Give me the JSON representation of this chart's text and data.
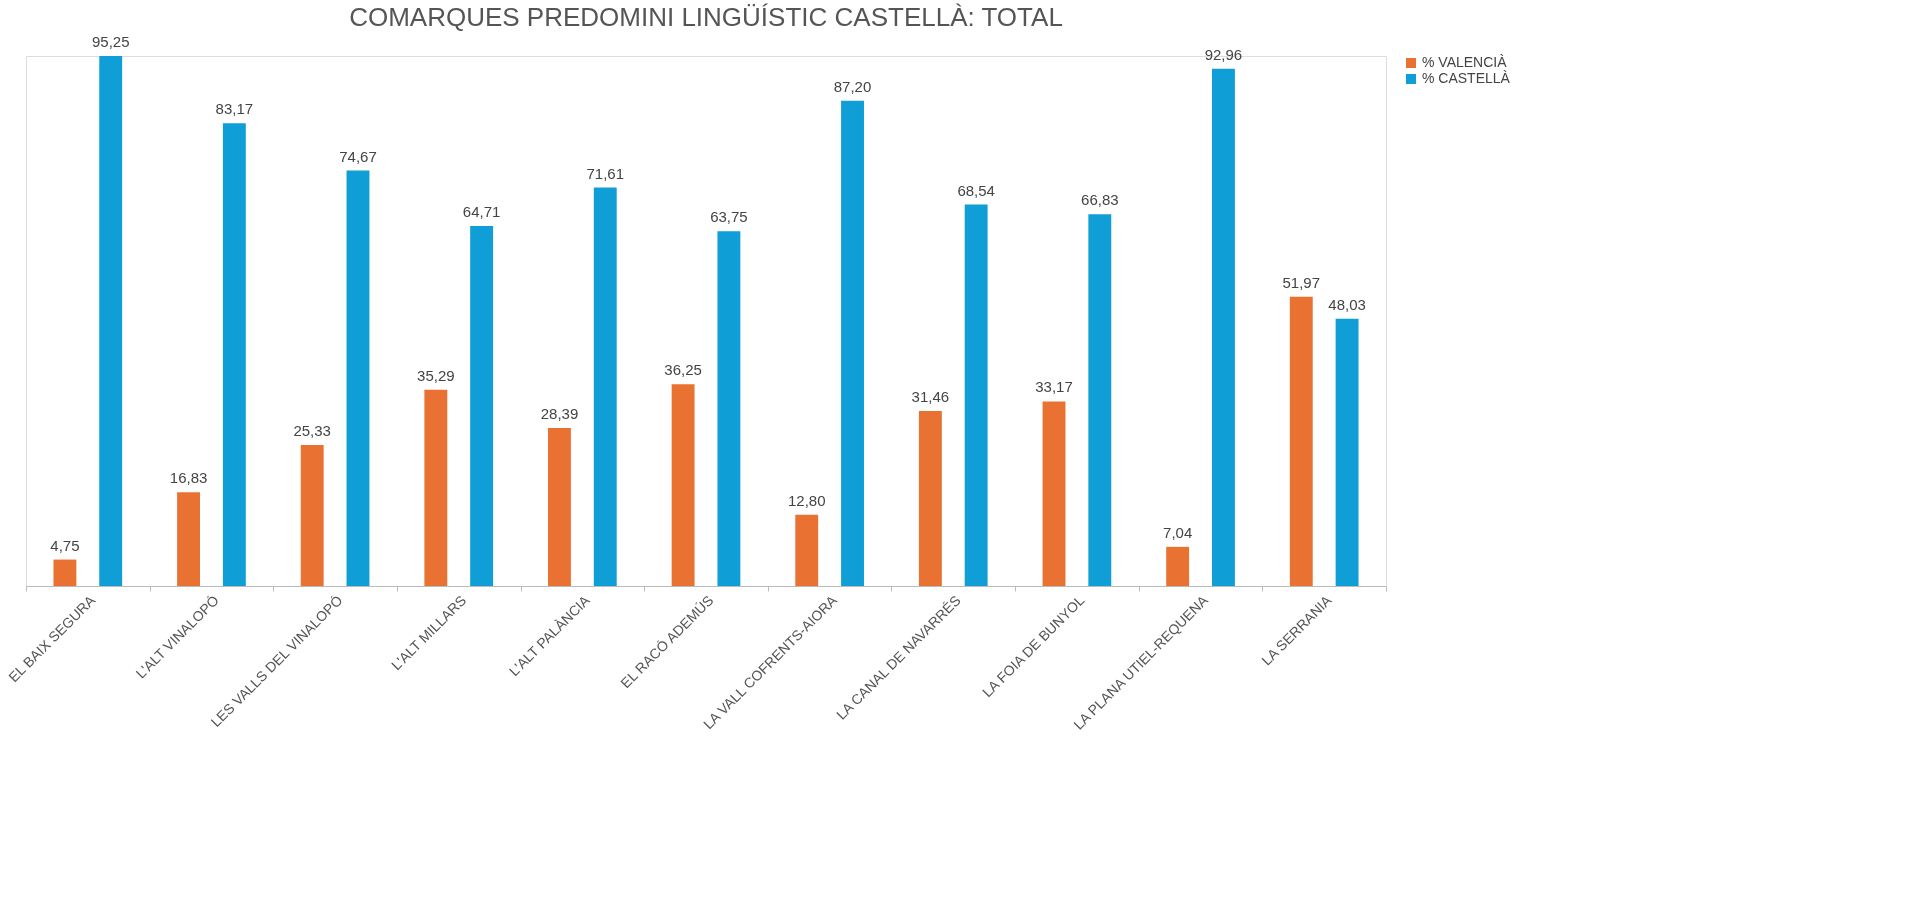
{
  "chart_data": {
    "type": "bar",
    "title": "COMARQUES PREDOMINI LINGÜÍSTIC CASTELLÀ: TOTAL",
    "categories": [
      "EL BAIX SEGURA",
      "L'ALT VINALOPÓ",
      "LES VALLS DEL VINALOPÓ",
      "L'ALT MILLARS",
      "L'ALT PALÀNCIA",
      "EL RACÓ ADEMÚS",
      "LA VALL COFRENTS-AIORA",
      "LA CANAL DE NAVARRÉS",
      "LA FOIA DE BUNYOL",
      "LA PLANA UTIEL-REQUENA",
      "LA SERRANIA"
    ],
    "series": [
      {
        "name": "% VALENCIÀ",
        "color": "#e97132",
        "values": [
          4.75,
          16.83,
          25.33,
          35.29,
          28.39,
          36.25,
          12.8,
          31.46,
          33.17,
          7.04,
          51.97
        ],
        "value_labels": [
          "4,75",
          "16,83",
          "25,33",
          "35,29",
          "28,39",
          "36,25",
          "12,80",
          "31,46",
          "33,17",
          "7,04",
          "51,97"
        ]
      },
      {
        "name": "% CASTELLÀ",
        "color": "#0f9ed5",
        "values": [
          95.25,
          83.17,
          74.67,
          64.71,
          71.61,
          63.75,
          87.2,
          68.54,
          66.83,
          92.96,
          48.03
        ],
        "value_labels": [
          "95,25",
          "83,17",
          "74,67",
          "64,71",
          "71,61",
          "63,75",
          "87,20",
          "68,54",
          "66,83",
          "92,96",
          "48,03"
        ]
      }
    ],
    "legend": "right",
    "grid": false
  }
}
